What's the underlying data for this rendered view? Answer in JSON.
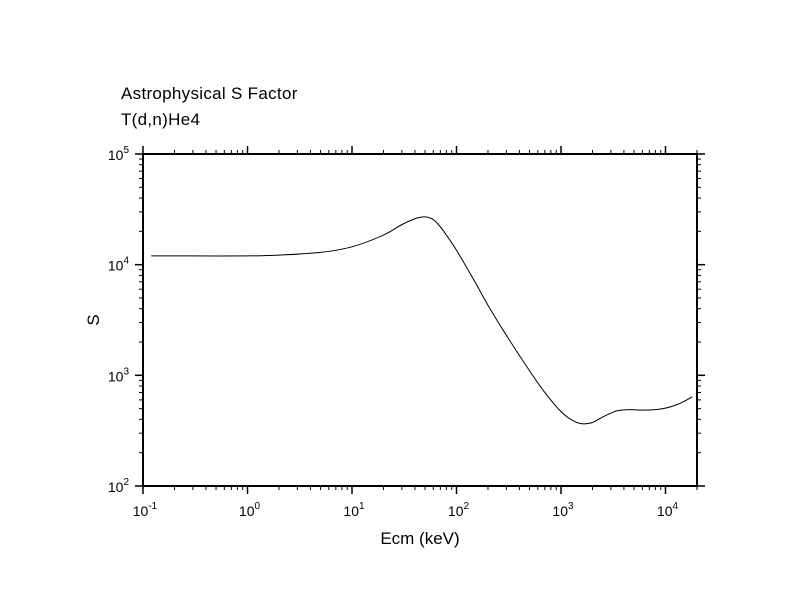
{
  "chart_data": {
    "type": "line",
    "title": "Astrophysical S Factor",
    "subtitle": "T(d,n)He4",
    "xlabel": "Ecm (keV)",
    "ylabel": "S",
    "xscale": "log",
    "yscale": "log",
    "xlim": [
      0.1,
      20000
    ],
    "ylim": [
      100,
      100000
    ],
    "x_ticks": [
      {
        "base": "10",
        "exp": "-1",
        "value": 0.1
      },
      {
        "base": "10",
        "exp": "0",
        "value": 1
      },
      {
        "base": "10",
        "exp": "1",
        "value": 10
      },
      {
        "base": "10",
        "exp": "2",
        "value": 100
      },
      {
        "base": "10",
        "exp": "3",
        "value": 1000
      },
      {
        "base": "10",
        "exp": "4",
        "value": 10000
      }
    ],
    "y_ticks": [
      {
        "base": "10",
        "exp": "2",
        "value": 100
      },
      {
        "base": "10",
        "exp": "3",
        "value": 1000
      },
      {
        "base": "10",
        "exp": "4",
        "value": 10000
      },
      {
        "base": "10",
        "exp": "5",
        "value": 100000
      }
    ],
    "grid": false,
    "series": [
      {
        "color": "#000000",
        "points": [
          [
            0.12,
            12000
          ],
          [
            0.3,
            12000
          ],
          [
            1,
            12000
          ],
          [
            2,
            12200
          ],
          [
            5,
            12900
          ],
          [
            10,
            14500
          ],
          [
            20,
            18500
          ],
          [
            30,
            23000
          ],
          [
            40,
            26000
          ],
          [
            50,
            27000
          ],
          [
            60,
            25500
          ],
          [
            70,
            22000
          ],
          [
            80,
            18500
          ],
          [
            100,
            13500
          ],
          [
            150,
            7000
          ],
          [
            200,
            4300
          ],
          [
            300,
            2300
          ],
          [
            500,
            1100
          ],
          [
            700,
            700
          ],
          [
            1000,
            470
          ],
          [
            1300,
            390
          ],
          [
            1600,
            365
          ],
          [
            2000,
            375
          ],
          [
            2500,
            420
          ],
          [
            3000,
            455
          ],
          [
            3500,
            480
          ],
          [
            4500,
            490
          ],
          [
            6000,
            485
          ],
          [
            8000,
            490
          ],
          [
            10000,
            505
          ],
          [
            13000,
            545
          ],
          [
            16000,
            600
          ],
          [
            18000,
            640
          ]
        ]
      }
    ]
  }
}
